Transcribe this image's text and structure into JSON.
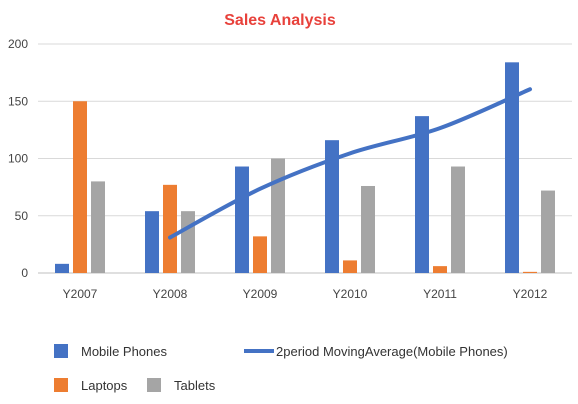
{
  "chart_data": {
    "type": "bar",
    "title": "Sales Analysis",
    "xlabel": "",
    "ylabel": "",
    "ylim": [
      0,
      200
    ],
    "yticks": [
      0,
      50,
      100,
      150,
      200
    ],
    "grid": true,
    "legend_position": "bottom",
    "categories": [
      "Y2007",
      "Y2008",
      "Y2009",
      "Y2010",
      "Y2011",
      "Y2012"
    ],
    "series": [
      {
        "name": "Mobile Phones",
        "values": [
          8,
          54,
          93,
          116,
          137,
          184
        ],
        "color": "#4472C4"
      },
      {
        "name": "Laptops",
        "values": [
          150,
          77,
          32,
          11,
          6,
          1
        ],
        "color": "#ED7D31"
      },
      {
        "name": "Tablets",
        "values": [
          80,
          54,
          100,
          76,
          93,
          72
        ],
        "color": "#A5A5A5"
      }
    ],
    "trendline": {
      "name": "2period MovingAverage(Mobile Phones)",
      "type": "moving_average",
      "period": 2,
      "values": [
        null,
        31,
        73.5,
        104.5,
        126.5,
        160.5
      ],
      "color": "#4472C4"
    },
    "title_color": "#E8413B",
    "grid_color": "#D9D9D9"
  }
}
